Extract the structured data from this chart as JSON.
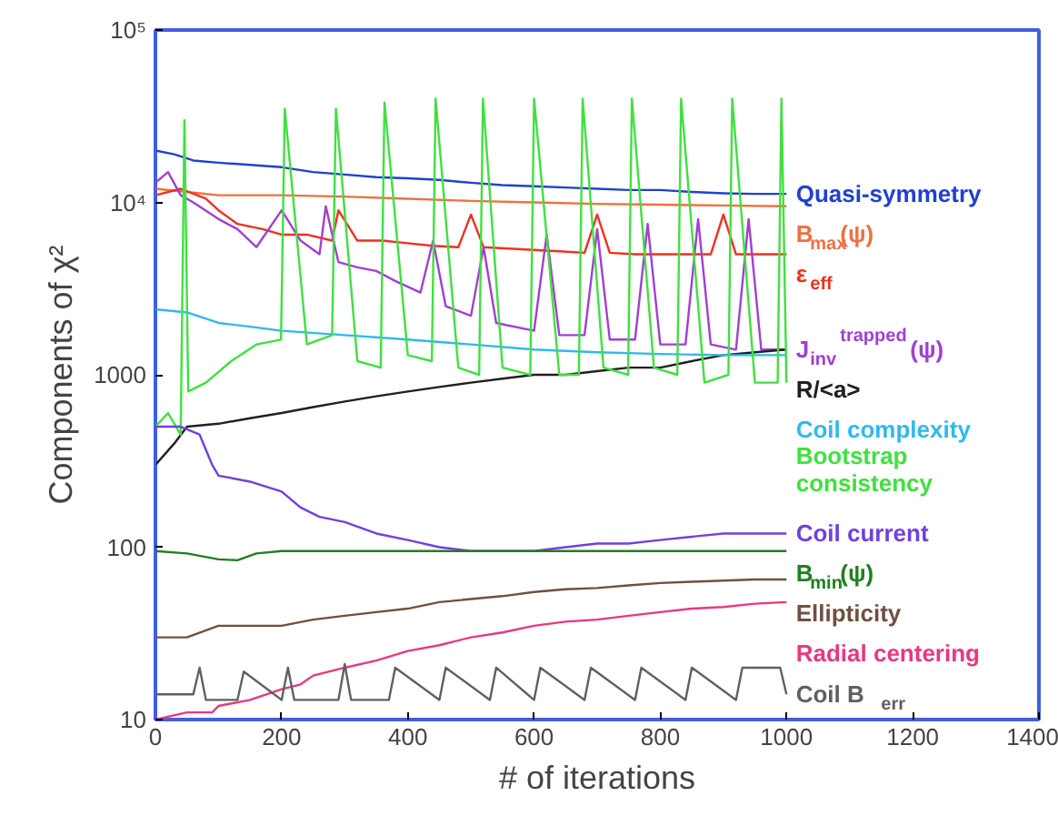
{
  "chart_data": {
    "type": "line",
    "xlabel": "# of iterations",
    "ylabel": "Components of χ²",
    "xlim": [
      0,
      1400
    ],
    "ylim": [
      10,
      100000
    ],
    "log": "y",
    "grid": false,
    "xticks": [
      0,
      200,
      400,
      600,
      800,
      1000,
      1200,
      1400
    ],
    "yticks": [
      10,
      100,
      1000,
      {
        "value": 10000,
        "label": "10⁴"
      },
      {
        "value": 100000,
        "label": "10⁵"
      }
    ],
    "series": [
      {
        "name": "Quasi-symmetry",
        "color": "#2040d0",
        "x": [
          0,
          30,
          60,
          100,
          150,
          200,
          250,
          300,
          350,
          400,
          450,
          500,
          550,
          600,
          650,
          700,
          750,
          800,
          850,
          900,
          950,
          1000
        ],
        "values": [
          20000,
          19000,
          17500,
          17000,
          16500,
          16000,
          15000,
          14500,
          14000,
          13800,
          13500,
          13000,
          12600,
          12400,
          12200,
          12000,
          11800,
          11800,
          11500,
          11300,
          11200,
          11200
        ]
      },
      {
        "name": "B$_{max}$(ψ)",
        "color": "#f07040",
        "x": [
          0,
          50,
          100,
          200,
          300,
          400,
          500,
          600,
          700,
          800,
          900,
          1000
        ],
        "values": [
          12000,
          11500,
          11000,
          11000,
          10800,
          10500,
          10200,
          10000,
          9800,
          9700,
          9600,
          9500
        ]
      },
      {
        "name": "ε$_{eff}$",
        "color": "#f03020",
        "x": [
          0,
          40,
          80,
          100,
          130,
          170,
          200,
          240,
          280,
          290,
          320,
          360,
          400,
          440,
          480,
          500,
          520,
          560,
          600,
          640,
          680,
          700,
          720,
          760,
          800,
          840,
          880,
          900,
          920,
          960,
          1000
        ],
        "values": [
          11000,
          12000,
          10500,
          9000,
          7500,
          7000,
          6500,
          6500,
          6000,
          9000,
          6000,
          6000,
          5800,
          5600,
          5500,
          8500,
          5500,
          5400,
          5300,
          5200,
          5100,
          8500,
          5100,
          5000,
          5000,
          5000,
          5000,
          8500,
          5000,
          5000,
          5000
        ]
      },
      {
        "name": "J$_{inv}$$^{trapped}$(ψ)",
        "color": "#a040d0",
        "x": [
          0,
          20,
          40,
          60,
          100,
          130,
          160,
          200,
          230,
          260,
          270,
          290,
          320,
          350,
          380,
          420,
          440,
          460,
          500,
          520,
          540,
          600,
          620,
          640,
          680,
          700,
          720,
          760,
          780,
          800,
          840,
          860,
          880,
          920,
          940,
          960,
          1000
        ],
        "values": [
          13000,
          15000,
          11000,
          10000,
          8000,
          7000,
          5500,
          9000,
          6000,
          5000,
          9500,
          4500,
          4200,
          4000,
          3500,
          3000,
          6000,
          2500,
          2200,
          5500,
          2000,
          1800,
          6500,
          1700,
          1700,
          7000,
          1600,
          1600,
          7500,
          1500,
          1500,
          8000,
          1500,
          1400,
          8000,
          1400,
          1400
        ]
      },
      {
        "name": "R/<a>",
        "color": "#202020",
        "x": [
          0,
          30,
          50,
          100,
          150,
          200,
          250,
          300,
          350,
          400,
          450,
          500,
          550,
          600,
          650,
          700,
          750,
          800,
          850,
          900,
          950,
          1000
        ],
        "values": [
          300,
          400,
          500,
          520,
          560,
          600,
          650,
          700,
          750,
          800,
          850,
          900,
          950,
          1000,
          1000,
          1050,
          1100,
          1100,
          1200,
          1300,
          1350,
          1400
        ]
      },
      {
        "name": "Coil complexity",
        "color": "#30b8f0",
        "x": [
          0,
          50,
          100,
          150,
          200,
          300,
          400,
          500,
          600,
          700,
          800,
          900,
          1000
        ],
        "values": [
          2400,
          2300,
          2000,
          1900,
          1800,
          1700,
          1600,
          1500,
          1400,
          1350,
          1320,
          1300,
          1300
        ]
      },
      {
        "name": "Bootstrap consistency",
        "color": "#40e040",
        "x": [
          0,
          20,
          40,
          46,
          52,
          80,
          120,
          160,
          199,
          205,
          240,
          280,
          286,
          320,
          357,
          363,
          400,
          438,
          444,
          480,
          513,
          519,
          550,
          594,
          600,
          640,
          671,
          677,
          710,
          749,
          755,
          790,
          827,
          833,
          870,
          908,
          914,
          950,
          986,
          992,
          1000
        ],
        "values": [
          500,
          600,
          450,
          30000,
          800,
          900,
          1200,
          1500,
          1600,
          35000,
          1500,
          1700,
          35000,
          1200,
          1100,
          38000,
          1300,
          1200,
          40000,
          1100,
          1000,
          40000,
          1100,
          1000,
          40000,
          1000,
          1000,
          40000,
          1100,
          1000,
          40000,
          1100,
          1000,
          40000,
          900,
          1000,
          40000,
          900,
          900,
          40000,
          900
        ]
      },
      {
        "name": "Coil current",
        "color": "#7040e0",
        "x": [
          0,
          40,
          70,
          90,
          100,
          150,
          200,
          230,
          260,
          300,
          350,
          400,
          450,
          500,
          550,
          600,
          650,
          700,
          750,
          800,
          850,
          900,
          950,
          1000
        ],
        "values": [
          500,
          500,
          450,
          300,
          260,
          240,
          210,
          170,
          150,
          140,
          120,
          110,
          100,
          95,
          95,
          95,
          100,
          105,
          105,
          110,
          115,
          120,
          120,
          120
        ]
      },
      {
        "name": "B$_{min}$(ψ)",
        "color": "#208020",
        "x": [
          0,
          50,
          100,
          130,
          160,
          200,
          300,
          400,
          500,
          600,
          700,
          800,
          900,
          1000
        ],
        "values": [
          95,
          92,
          85,
          84,
          92,
          95,
          95,
          95,
          95,
          95,
          95,
          95,
          95,
          95
        ]
      },
      {
        "name": "Ellipticity",
        "color": "#705040",
        "x": [
          0,
          50,
          100,
          200,
          250,
          300,
          350,
          400,
          450,
          500,
          550,
          600,
          650,
          700,
          750,
          800,
          850,
          900,
          950,
          1000
        ],
        "values": [
          30,
          30,
          35,
          35,
          38,
          40,
          42,
          44,
          48,
          50,
          52,
          55,
          57,
          58,
          60,
          62,
          63,
          64,
          65,
          65
        ]
      },
      {
        "name": "Radial centering",
        "color": "#e83880",
        "x": [
          0,
          50,
          90,
          100,
          150,
          200,
          230,
          250,
          300,
          350,
          400,
          450,
          500,
          550,
          600,
          650,
          700,
          750,
          800,
          850,
          900,
          950,
          1000
        ],
        "values": [
          10,
          11,
          11,
          12,
          13,
          15,
          16,
          18,
          20,
          22,
          25,
          27,
          30,
          32,
          35,
          37,
          38,
          40,
          42,
          44,
          45,
          47,
          48
        ]
      },
      {
        "name": "Coil B$_{err}$",
        "color": "#606060",
        "x": [
          0,
          60,
          70,
          80,
          130,
          140,
          200,
          210,
          220,
          290,
          300,
          310,
          370,
          380,
          450,
          460,
          530,
          540,
          600,
          610,
          680,
          690,
          760,
          770,
          840,
          850,
          920,
          930,
          990,
          1000
        ],
        "values": [
          14,
          14,
          20,
          13,
          13,
          19,
          13,
          20,
          13,
          13,
          21,
          13,
          13,
          20,
          13,
          20,
          13,
          20,
          13,
          20,
          13,
          20,
          13,
          20,
          13,
          20,
          13,
          20,
          20,
          14
        ]
      }
    ]
  }
}
